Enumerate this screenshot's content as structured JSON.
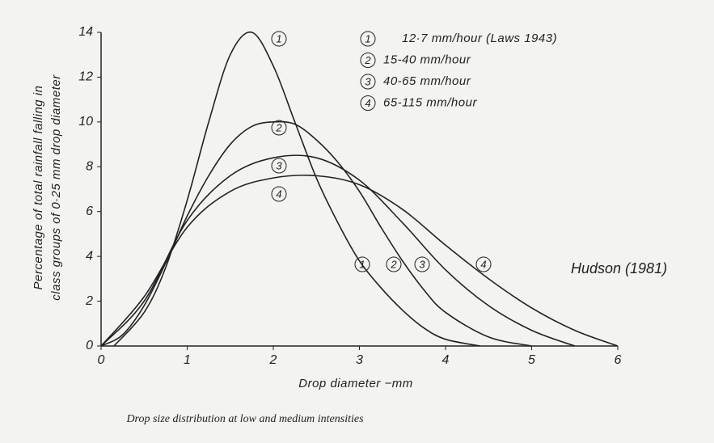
{
  "chart_data": {
    "type": "line",
    "xlabel": "Drop diameter −mm",
    "ylabel": [
      "Percentage of total rainfall falling in",
      "class groups of 0·25 mm drop diameter"
    ],
    "caption": "Drop size distribution at low and medium intensities",
    "annotation": "Hudson (1981)",
    "xlim": [
      0,
      6
    ],
    "ylim": [
      0,
      14
    ],
    "xticks": [
      0,
      1,
      2,
      3,
      4,
      5,
      6
    ],
    "yticks": [
      0,
      2,
      4,
      6,
      8,
      10,
      12,
      14
    ],
    "series": [
      {
        "name": "12·7 mm/hour (Laws 1943)",
        "marker": "1",
        "color": "#222222",
        "x": [
          0.15,
          0.5,
          0.75,
          1.0,
          1.25,
          1.5,
          1.75,
          2.0,
          2.25,
          2.5,
          2.75,
          3.0,
          3.25,
          3.5,
          3.75,
          4.0,
          4.4
        ],
        "values": [
          0,
          1.5,
          3.5,
          6.5,
          10,
          13,
          14,
          12.5,
          10,
          7.5,
          5.5,
          3.8,
          2.6,
          1.6,
          0.8,
          0.3,
          0
        ]
      },
      {
        "name": "15-40 mm/hour",
        "marker": "2",
        "color": "#222222",
        "x": [
          0,
          0.25,
          0.5,
          0.75,
          1.0,
          1.25,
          1.5,
          1.75,
          2.0,
          2.25,
          2.5,
          2.75,
          3.0,
          3.25,
          3.5,
          3.75,
          4.0,
          4.5,
          5.0
        ],
        "values": [
          0,
          0.5,
          1.8,
          3.7,
          5.8,
          7.6,
          9,
          9.8,
          10,
          9.9,
          9.2,
          8.2,
          6.9,
          5.3,
          3.8,
          2.5,
          1.5,
          0.4,
          0
        ]
      },
      {
        "name": "40-65 mm/hour",
        "marker": "3",
        "color": "#222222",
        "x": [
          0,
          0.5,
          1.0,
          1.5,
          2.0,
          2.5,
          3.0,
          3.5,
          4.0,
          4.5,
          5.0,
          5.5
        ],
        "values": [
          0,
          2.0,
          5.6,
          7.6,
          8.4,
          8.4,
          7.4,
          5.5,
          3.4,
          1.8,
          0.7,
          0
        ]
      },
      {
        "name": "65-115 mm/hour",
        "marker": "4",
        "color": "#222222",
        "x": [
          0,
          0.5,
          1.0,
          1.5,
          2.0,
          2.5,
          3.0,
          3.5,
          4.0,
          4.5,
          5.0,
          5.5,
          6.0
        ],
        "values": [
          0,
          2.2,
          5.3,
          6.9,
          7.5,
          7.6,
          7.2,
          6.1,
          4.5,
          3.0,
          1.7,
          0.7,
          0
        ]
      }
    ]
  }
}
